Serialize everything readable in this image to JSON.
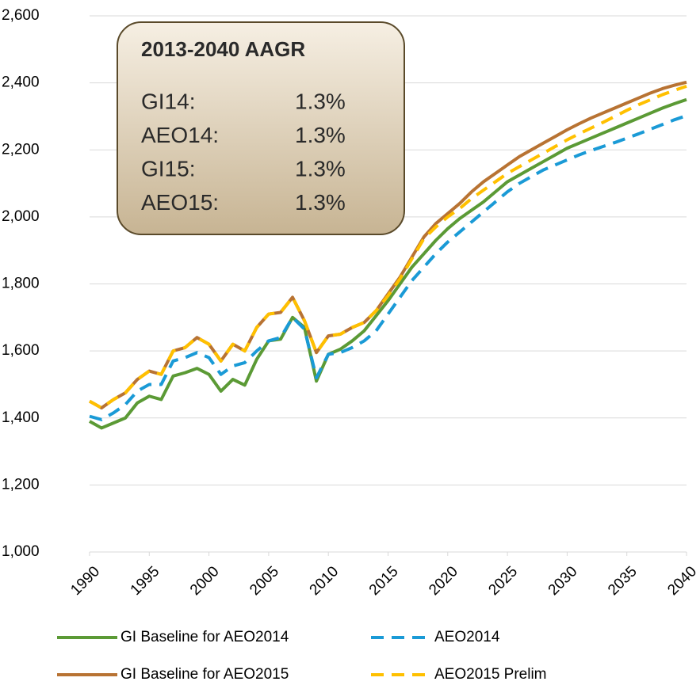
{
  "chart_data": {
    "type": "line",
    "x": [
      1990,
      1991,
      1992,
      1993,
      1994,
      1995,
      1996,
      1997,
      1998,
      1999,
      2000,
      2001,
      2002,
      2003,
      2004,
      2005,
      2006,
      2007,
      2008,
      2009,
      2010,
      2011,
      2012,
      2013,
      2014,
      2015,
      2016,
      2017,
      2018,
      2019,
      2020,
      2021,
      2022,
      2023,
      2024,
      2025,
      2026,
      2027,
      2028,
      2029,
      2030,
      2031,
      2032,
      2033,
      2034,
      2035,
      2036,
      2037,
      2038,
      2039,
      2040
    ],
    "series": [
      {
        "name": "GI Baseline for AEO2014",
        "color": "#5b9a35",
        "dashed": false,
        "values": [
          1390,
          1370,
          1385,
          1400,
          1445,
          1465,
          1455,
          1525,
          1535,
          1548,
          1530,
          1480,
          1515,
          1498,
          1575,
          1630,
          1635,
          1700,
          1670,
          1510,
          1590,
          1605,
          1630,
          1660,
          1705,
          1750,
          1800,
          1850,
          1890,
          1930,
          1965,
          1995,
          2020,
          2045,
          2075,
          2105,
          2125,
          2145,
          2165,
          2185,
          2205,
          2220,
          2235,
          2250,
          2265,
          2280,
          2295,
          2310,
          2325,
          2338,
          2350
        ]
      },
      {
        "name": "AEO2014",
        "color": "#1a9ad6",
        "dashed": true,
        "values": [
          1405,
          1395,
          1415,
          1440,
          1480,
          1500,
          1500,
          1570,
          1580,
          1595,
          1580,
          1530,
          1555,
          1565,
          1600,
          1630,
          1640,
          1700,
          1665,
          1520,
          1590,
          1595,
          1610,
          1630,
          1660,
          1710,
          1760,
          1810,
          1850,
          1890,
          1925,
          1955,
          1985,
          2015,
          2045,
          2075,
          2100,
          2120,
          2140,
          2155,
          2170,
          2185,
          2198,
          2210,
          2222,
          2235,
          2248,
          2262,
          2276,
          2290,
          2302
        ]
      },
      {
        "name": "GI Baseline for AEO2015",
        "color": "#b87333",
        "dashed": false,
        "values": [
          1450,
          1430,
          1455,
          1475,
          1515,
          1540,
          1530,
          1600,
          1610,
          1640,
          1620,
          1570,
          1620,
          1600,
          1670,
          1710,
          1715,
          1760,
          1690,
          1595,
          1645,
          1650,
          1670,
          1685,
          1720,
          1770,
          1820,
          1880,
          1940,
          1980,
          2010,
          2040,
          2075,
          2105,
          2130,
          2155,
          2180,
          2200,
          2220,
          2240,
          2260,
          2278,
          2295,
          2310,
          2325,
          2340,
          2355,
          2370,
          2383,
          2393,
          2402
        ]
      },
      {
        "name": "AEO2015 Prelim",
        "color": "#ffc000",
        "dashed": true,
        "values": [
          1450,
          1430,
          1455,
          1475,
          1515,
          1540,
          1530,
          1600,
          1610,
          1640,
          1620,
          1570,
          1620,
          1600,
          1670,
          1710,
          1715,
          1760,
          1690,
          1595,
          1645,
          1650,
          1670,
          1685,
          1720,
          1765,
          1815,
          1875,
          1935,
          1970,
          2000,
          2025,
          2055,
          2080,
          2105,
          2130,
          2150,
          2170,
          2190,
          2210,
          2230,
          2248,
          2265,
          2282,
          2300,
          2318,
          2335,
          2350,
          2365,
          2378,
          2390
        ]
      }
    ],
    "xlim": [
      1990,
      2040
    ],
    "xticks": [
      1990,
      1995,
      2000,
      2005,
      2010,
      2015,
      2020,
      2025,
      2030,
      2035,
      2040
    ],
    "ylim": [
      1000,
      2600
    ],
    "yticks": [
      {
        "value": 1000,
        "label": "1,000"
      },
      {
        "value": 1200,
        "label": "1,200"
      },
      {
        "value": 1400,
        "label": "1,400"
      },
      {
        "value": 1600,
        "label": "1,600"
      },
      {
        "value": 1800,
        "label": "1,800"
      },
      {
        "value": 2000,
        "label": "2,000"
      },
      {
        "value": 2200,
        "label": "2,200"
      },
      {
        "value": 2400,
        "label": "2,400"
      },
      {
        "value": 2600,
        "label": "2,600"
      }
    ],
    "grid": true,
    "annotation": {
      "title": "2013-2040 AAGR",
      "rows": [
        [
          "GI14:",
          "1.3%"
        ],
        [
          "AEO14:",
          "1.3%"
        ],
        [
          "GI15:",
          "1.3%"
        ],
        [
          "AEO15:",
          "1.3%"
        ]
      ]
    }
  }
}
